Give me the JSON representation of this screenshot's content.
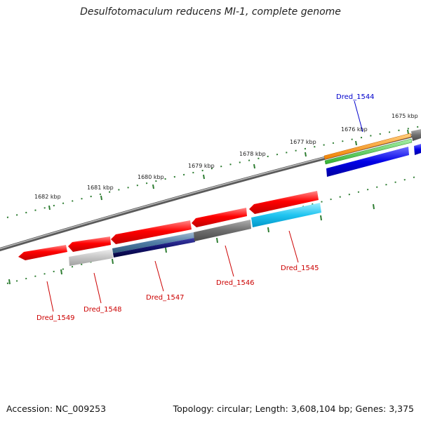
{
  "title": "Desulfotomaculum reducens MI-1, complete genome",
  "footer": {
    "accession": "Accession: NC_009253",
    "topology": "Topology: circular; Length: 3,608,104 bp; Genes: 3,375"
  },
  "colors": {
    "backbone": "#808080",
    "tick": "#2e7d32",
    "forward_gene": "#ff0000",
    "label_reverse": "#cc0000",
    "label_forward": "#0000cc"
  },
  "scale_labels": [
    "1682 kbp",
    "1681 kbp",
    "1680 kbp",
    "1679 kbp",
    "1678 kbp",
    "1677 kbp",
    "1676 kbp",
    "1675 kbp"
  ],
  "gene_labels": [
    {
      "text": "Dred_1544",
      "color": "#0000cc"
    },
    {
      "text": "Dred_1545",
      "color": "#cc0000"
    },
    {
      "text": "Dred_1546",
      "color": "#cc0000"
    },
    {
      "text": "Dred_1547",
      "color": "#cc0000"
    },
    {
      "text": "Dred_1548",
      "color": "#cc0000"
    },
    {
      "text": "Dred_1549",
      "color": "#cc0000"
    }
  ]
}
